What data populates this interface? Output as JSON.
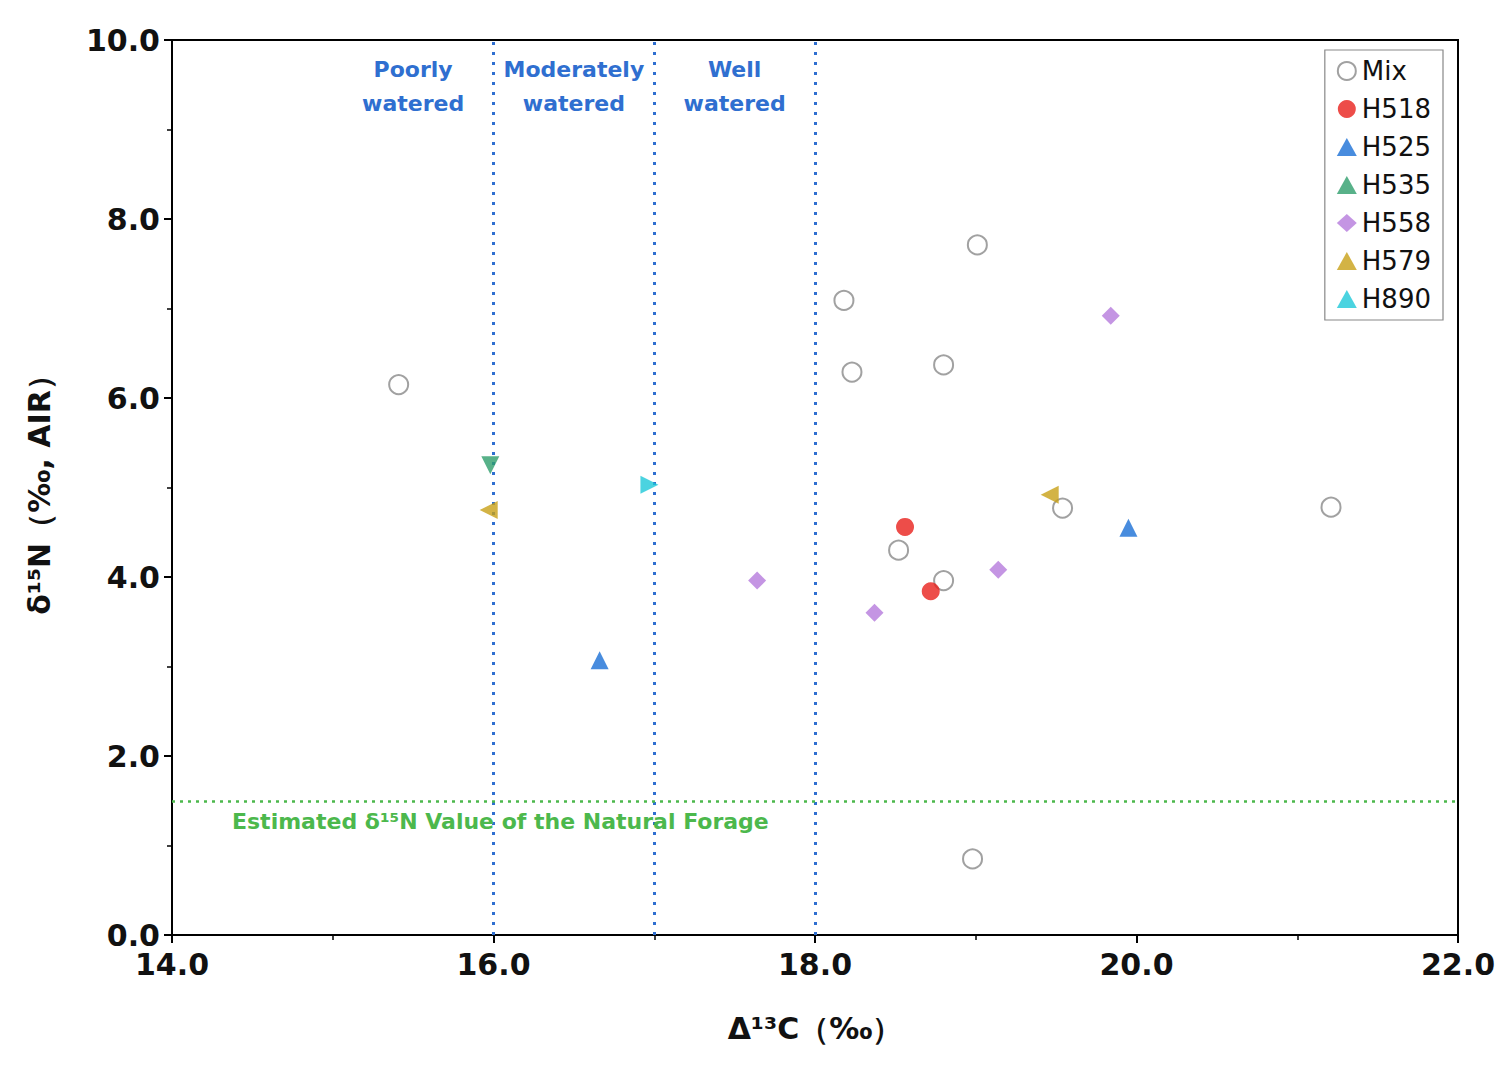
{
  "chart_data": {
    "type": "scatter",
    "x_label": "Δ¹³C（‰）",
    "y_label": "δ¹⁵N（‰, AIR）",
    "xlim": [
      14,
      22
    ],
    "xticks": [
      {
        "value": 14,
        "label": "14.0"
      },
      {
        "value": 16,
        "label": "16.0"
      },
      {
        "value": 18,
        "label": "18.0"
      },
      {
        "value": 20,
        "label": "20.0"
      },
      {
        "value": 22,
        "label": "22.0"
      }
    ],
    "ylim": [
      0,
      10
    ],
    "yticks": [
      {
        "value": 0,
        "label": "0.0"
      },
      {
        "value": 2,
        "label": "2.0"
      },
      {
        "value": 4,
        "label": "4.0"
      },
      {
        "value": 6,
        "label": "6.0"
      },
      {
        "value": 8,
        "label": "8.0"
      },
      {
        "value": 10,
        "label": "10.0"
      }
    ],
    "grid": false,
    "legend": "top-right",
    "boundaries": [
      16,
      17,
      18
    ],
    "zones": [
      {
        "label": "Poorly watered",
        "x": 15.5
      },
      {
        "label": "Moderately watered",
        "x": 16.5
      },
      {
        "label": "Well watered",
        "x": 17.5
      }
    ],
    "reference_line": {
      "y": 1.5,
      "label": "Estimated δ¹⁵N Value of the Natural Forage"
    },
    "series": [
      {
        "name": "Mix",
        "color": "#8a8a8a",
        "marker": "open-circle",
        "x": [
          15.41,
          18.18,
          18.23,
          19.01,
          18.8,
          18.52,
          18.8,
          19.54,
          21.21,
          18.98
        ],
        "values": [
          6.15,
          7.09,
          6.29,
          7.71,
          6.37,
          4.3,
          3.96,
          4.77,
          4.78,
          0.85
        ]
      },
      {
        "name": "H518",
        "color": "#e8211c",
        "marker": "circle",
        "x": [
          18.56,
          18.72
        ],
        "values": [
          4.56,
          3.84
        ]
      },
      {
        "name": "H525",
        "color": "#1a6fd6",
        "marker": "triangle-up",
        "x": [
          16.66,
          19.95
        ],
        "values": [
          3.07,
          4.55
        ]
      },
      {
        "name": "H535",
        "color": "#2e9e6b",
        "marker": "triangle-down",
        "x": [
          15.98
        ],
        "values": [
          5.25
        ]
      },
      {
        "name": "H558",
        "color": "#b57bdc",
        "marker": "diamond",
        "x": [
          17.64,
          18.37,
          19.14,
          19.84
        ],
        "values": [
          3.96,
          3.6,
          4.08,
          6.92
        ]
      },
      {
        "name": "H579",
        "color": "#c8a017",
        "marker": "triangle-left",
        "x": [
          15.97,
          19.46
        ],
        "values": [
          4.75,
          4.92
        ]
      },
      {
        "name": "H890",
        "color": "#1ec8d8",
        "marker": "triangle-right",
        "x": [
          16.97
        ],
        "values": [
          5.03
        ]
      }
    ]
  }
}
